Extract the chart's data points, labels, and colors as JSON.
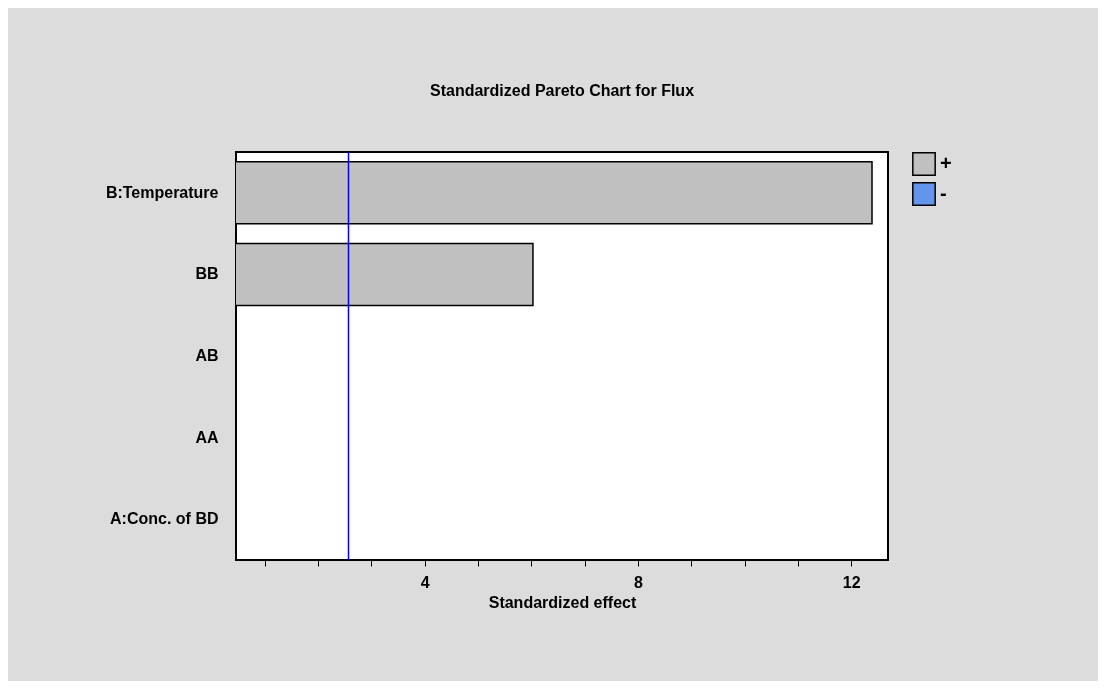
{
  "chart_data": {
    "type": "bar",
    "orientation": "horizontal",
    "title": "Standardized Pareto Chart for Flux",
    "xlabel": "Standardized effect",
    "categories": [
      "B:Temperature",
      "BB",
      "AB",
      "AA",
      "A:Conc. of BD"
    ],
    "series": [
      {
        "name": "+",
        "color": "#c0c0c0",
        "values": [
          12.39,
          6.03,
          null,
          null,
          null
        ]
      },
      {
        "name": "-",
        "color": "#6495ed",
        "values": [
          null,
          null,
          null,
          null,
          null
        ]
      }
    ],
    "xlim": [
      0.46,
      12.69
    ],
    "xticks": [
      {
        "value": 1,
        "label": null
      },
      {
        "value": 2,
        "label": null
      },
      {
        "value": 3,
        "label": null
      },
      4,
      {
        "value": 5,
        "label": null
      },
      {
        "value": 6,
        "label": null
      },
      {
        "value": 7,
        "label": null
      },
      8,
      {
        "value": 9,
        "label": null
      },
      {
        "value": 10,
        "label": null
      },
      {
        "value": 11,
        "label": null
      },
      12
    ],
    "ref_lines": [
      {
        "axis": "x",
        "value": 2.57,
        "color": "#0000ff"
      }
    ],
    "grid": false,
    "legend": "top right"
  }
}
